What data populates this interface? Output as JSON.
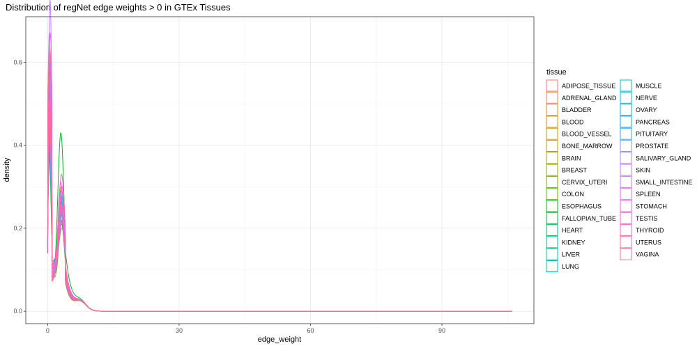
{
  "chart_data": {
    "type": "line",
    "title": "Distribution of regNet edge weights > 0 in GTEx Tissues",
    "xlabel": "edge_weight",
    "ylabel": "density",
    "xlim": [
      -5,
      111
    ],
    "ylim": [
      -0.03,
      0.71
    ],
    "x_ticks": [
      0,
      30,
      60,
      90
    ],
    "y_ticks": [
      0.0,
      0.2,
      0.4,
      0.6
    ],
    "x_tick_labels": [
      "0",
      "30",
      "60",
      "90"
    ],
    "y_tick_labels": [
      "0.0",
      "0.2",
      "0.4",
      "0.6"
    ],
    "grid": true,
    "legend_title": "tissue",
    "legend_position": "right",
    "x_max": 106,
    "series": [
      {
        "name": "ADIPOSE_TISSUE",
        "color": "#F8766D",
        "p1": 0.55,
        "d": 0.06,
        "p2": 0.26
      },
      {
        "name": "ADRENAL_GLAND",
        "color": "#F27D52",
        "p1": 0.62,
        "d": 0.05,
        "p2": 0.22
      },
      {
        "name": "BLADDER",
        "color": "#E7861B",
        "p1": 0.48,
        "d": 0.07,
        "p2": 0.28
      },
      {
        "name": "BLOOD",
        "color": "#DB8E00",
        "p1": 0.4,
        "d": 0.1,
        "p2": 0.2
      },
      {
        "name": "BLOOD_VESSEL",
        "color": "#CE9600",
        "p1": 0.52,
        "d": 0.06,
        "p2": 0.25
      },
      {
        "name": "BONE_MARROW",
        "color": "#BE9C00",
        "p1": 0.45,
        "d": 0.08,
        "p2": 0.24
      },
      {
        "name": "BRAIN",
        "color": "#ABA300",
        "p1": 0.38,
        "d": 0.09,
        "p2": 0.3
      },
      {
        "name": "BREAST",
        "color": "#94A800",
        "p1": 0.5,
        "d": 0.07,
        "p2": 0.23
      },
      {
        "name": "CERVIX_UTERI",
        "color": "#7AAE00",
        "p1": 0.43,
        "d": 0.08,
        "p2": 0.26
      },
      {
        "name": "COLON",
        "color": "#53B400",
        "p1": 0.47,
        "d": 0.06,
        "p2": 0.27
      },
      {
        "name": "ESOPHAGUS",
        "color": "#00B81F",
        "p1": 0.35,
        "d": 0.05,
        "p2": 0.43
      },
      {
        "name": "FALLOPIAN_TUBE",
        "color": "#00BC45",
        "p1": 0.41,
        "d": 0.08,
        "p2": 0.25
      },
      {
        "name": "HEART",
        "color": "#00BE67",
        "p1": 0.46,
        "d": 0.07,
        "p2": 0.21
      },
      {
        "name": "KIDNEY",
        "color": "#00C084",
        "p1": 0.3,
        "d": 0.08,
        "p2": 0.22
      },
      {
        "name": "LIVER",
        "color": "#00C19F",
        "p1": 0.34,
        "d": 0.09,
        "p2": 0.28
      },
      {
        "name": "LUNG",
        "color": "#00C0B8",
        "p1": 0.39,
        "d": 0.07,
        "p2": 0.24
      },
      {
        "name": "MUSCLE",
        "color": "#00BDCF",
        "p1": 0.33,
        "d": 0.06,
        "p2": 0.27
      },
      {
        "name": "NERVE",
        "color": "#00B9E3",
        "p1": 0.44,
        "d": 0.08,
        "p2": 0.23
      },
      {
        "name": "OVARY",
        "color": "#00B3F2",
        "p1": 0.37,
        "d": 0.09,
        "p2": 0.26
      },
      {
        "name": "PANCREAS",
        "color": "#00ABFD",
        "p1": 0.5,
        "d": 0.1,
        "p2": 0.22
      },
      {
        "name": "PITUITARY",
        "color": "#30A1FF",
        "p1": 0.42,
        "d": 0.07,
        "p2": 0.24
      },
      {
        "name": "PROSTATE",
        "color": "#8B93FF",
        "p1": 0.48,
        "d": 0.06,
        "p2": 0.29
      },
      {
        "name": "SALIVARY_GLAND",
        "color": "#AC88FF",
        "p1": 0.52,
        "d": 0.08,
        "p2": 0.25
      },
      {
        "name": "SKIN",
        "color": "#C77CFF",
        "p1": 0.68,
        "d": 0.07,
        "p2": 0.27
      },
      {
        "name": "SMALL_INTESTINE",
        "color": "#DA72FB",
        "p1": 0.58,
        "d": 0.09,
        "p2": 0.24
      },
      {
        "name": "SPLEEN",
        "color": "#E96AF0",
        "p1": 0.46,
        "d": 0.05,
        "p2": 0.31
      },
      {
        "name": "STOMACH",
        "color": "#F464E3",
        "p1": 0.5,
        "d": 0.07,
        "p2": 0.28
      },
      {
        "name": "TESTIS",
        "color": "#FB61D3",
        "p1": 0.4,
        "d": 0.09,
        "p2": 0.33
      },
      {
        "name": "THYROID",
        "color": "#FF62BF",
        "p1": 0.55,
        "d": 0.08,
        "p2": 0.22
      },
      {
        "name": "UTERUS",
        "color": "#FF67A9",
        "p1": 0.44,
        "d": 0.06,
        "p2": 0.3
      },
      {
        "name": "VAGINA",
        "color": "#FF6C91",
        "p1": 0.49,
        "d": 0.08,
        "p2": 0.25
      }
    ]
  }
}
